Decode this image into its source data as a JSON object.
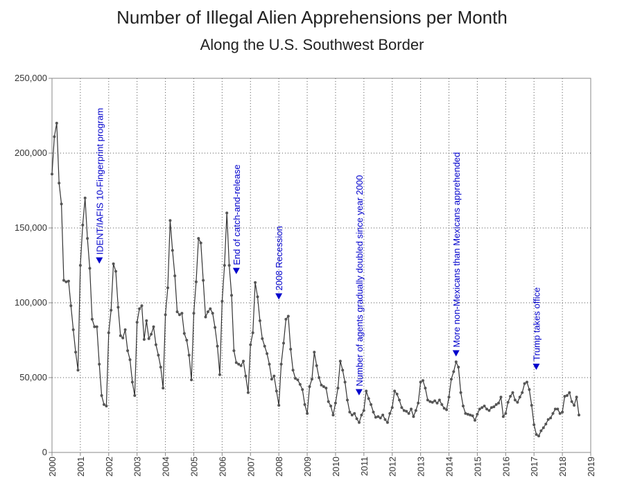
{
  "chart_data": {
    "type": "line",
    "title": "Number of Illegal Alien Apprehensions per Month",
    "subtitle": "Along the U.S. Southwest Border",
    "xlabel": "",
    "ylabel": "",
    "xlim": [
      2000,
      2019
    ],
    "ylim": [
      0,
      250000
    ],
    "grid": true,
    "line_color": "#333333",
    "marker_color": "#555555",
    "annotation_color": "#0000cc",
    "y_ticks": [
      0,
      50000,
      100000,
      150000,
      200000,
      250000
    ],
    "y_tick_labels": [
      "0",
      "50,000",
      "100,000",
      "150,000",
      "200,000",
      "250,000"
    ],
    "x_ticks": [
      2000,
      2001,
      2002,
      2003,
      2004,
      2005,
      2006,
      2007,
      2008,
      2009,
      2010,
      2011,
      2012,
      2013,
      2014,
      2015,
      2016,
      2017,
      2018,
      2019
    ],
    "x_tick_labels": [
      "2000",
      "2001",
      "2002",
      "2003",
      "2004",
      "2005",
      "2006",
      "2007",
      "2008",
      "2009",
      "2010",
      "2011",
      "2012",
      "2013",
      "2014",
      "2015",
      "2016",
      "2017",
      "2018",
      "2019"
    ],
    "series_start_year": 2000,
    "values": [
      186000,
      211000,
      220000,
      180000,
      166000,
      115000,
      114000,
      114500,
      98000,
      82000,
      67000,
      55000,
      125000,
      152000,
      170000,
      143000,
      123000,
      89000,
      84000,
      84000,
      59000,
      38000,
      32000,
      31000,
      80000,
      95000,
      126000,
      121000,
      97000,
      78000,
      76500,
      82000,
      68000,
      62000,
      47000,
      38000,
      87000,
      96000,
      98000,
      75500,
      88000,
      76000,
      79000,
      84000,
      72000,
      65000,
      57000,
      43000,
      92000,
      110000,
      155000,
      135000,
      118000,
      94000,
      92000,
      93000,
      79500,
      75000,
      65000,
      48500,
      93000,
      114000,
      143000,
      140000,
      115000,
      90500,
      94000,
      96000,
      93000,
      83500,
      71000,
      52000,
      101000,
      125000,
      160000,
      125000,
      105000,
      68000,
      60000,
      59000,
      58000,
      61000,
      51000,
      40000,
      72000,
      80000,
      113500,
      104000,
      88000,
      76000,
      71000,
      66000,
      59000,
      49000,
      51000,
      41000,
      31500,
      59000,
      73000,
      89000,
      91000,
      69000,
      55000,
      49500,
      48500,
      45500,
      42000,
      32000,
      26000,
      44000,
      49000,
      67000,
      58000,
      50000,
      45000,
      44000,
      43000,
      34000,
      31000,
      25000,
      33000,
      43000,
      61000,
      55000,
      47000,
      35000,
      27000,
      25000,
      26000,
      22500,
      20000,
      25000,
      28000,
      41000,
      36000,
      32000,
      27000,
      23500,
      24000,
      23000,
      25000,
      22000,
      20000,
      26000,
      30000,
      41000,
      39000,
      35000,
      30000,
      28000,
      27500,
      26000,
      29000,
      24000,
      28000,
      33000,
      47000,
      48000,
      43000,
      35000,
      34000,
      33500,
      34500,
      33000,
      35000,
      32000,
      29500,
      28500,
      37000,
      49000,
      54000,
      60500,
      57000,
      40000,
      31000,
      26000,
      25500,
      25000,
      24500,
      21500,
      25500,
      29000,
      30000,
      31000,
      29000,
      28000,
      30000,
      30500,
      32000,
      33000,
      37000,
      24000,
      26000,
      33500,
      37500,
      40000,
      35000,
      33500,
      37000,
      40000,
      46000,
      47000,
      42000,
      31500,
      18500,
      12000,
      11000,
      14500,
      16500,
      19000,
      22000,
      23000,
      26000,
      29000,
      29000,
      26000,
      27000,
      37500,
      38000,
      40000,
      34000,
      31500,
      37000,
      25000
    ],
    "annotations": [
      {
        "x": 2001.67,
        "text": "IDENT/IAFIS 10-Fingerprint program",
        "marker_y": 128000
      },
      {
        "x": 2006.5,
        "text": "End of catch-and-release",
        "marker_y": 121000
      },
      {
        "x": 2008.0,
        "text": "2008 Recession",
        "marker_y": 104000
      },
      {
        "x": 2010.83,
        "text": "Number of agents gradually doubled since year 2000",
        "marker_y": 40000
      },
      {
        "x": 2014.25,
        "text": "More non-Mexicans than Mexicans apprehended",
        "marker_y": 66000
      },
      {
        "x": 2017.08,
        "text": "Trump takes office",
        "marker_y": 57000
      }
    ]
  }
}
